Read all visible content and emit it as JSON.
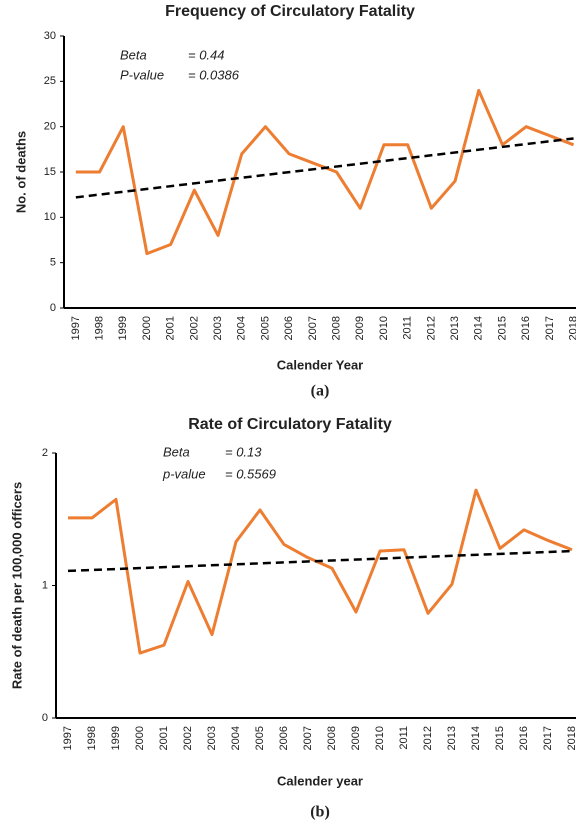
{
  "chart_data": [
    {
      "type": "line",
      "title": "Frequency of Circulatory Fatality",
      "x_label": "Calender Year",
      "y_label": "No. of deaths",
      "caption": "(a)",
      "categories": [
        "1997",
        "1998",
        "1999",
        "2000",
        "2001",
        "2002",
        "2003",
        "2004",
        "2005",
        "2006",
        "2007",
        "2008",
        "2009",
        "2010",
        "2011",
        "2012",
        "2013",
        "2014",
        "2015",
        "2016",
        "2017",
        "2018"
      ],
      "series": [
        {
          "color": "#ed7d31",
          "values": [
            15,
            15,
            20,
            6,
            7,
            13,
            8,
            17,
            20,
            17,
            16,
            15,
            11,
            18,
            18,
            11,
            14,
            24,
            18,
            20,
            19,
            18
          ]
        }
      ],
      "trendline": {
        "color": "#000000",
        "values": [
          12.2,
          18.7
        ]
      },
      "annotations": [
        {
          "label": "Beta",
          "text": "= 0.44"
        },
        {
          "label": "P-value",
          "text": "= 0.0386"
        }
      ],
      "ylim": [
        0,
        30
      ],
      "yticks": [
        0,
        5,
        10,
        15,
        20,
        25,
        30
      ],
      "grid": false
    },
    {
      "type": "line",
      "title": "Rate of Circulatory Fatality",
      "x_label": "Calender year",
      "y_label": "Rate of death per 100,000 officers",
      "caption": "(b)",
      "categories": [
        "1997",
        "1998",
        "1999",
        "2000",
        "2001",
        "2002",
        "2003",
        "2004",
        "2005",
        "2006",
        "2007",
        "2008",
        "2009",
        "2010",
        "2011",
        "2012",
        "2013",
        "2014",
        "2015",
        "2016",
        "2017",
        "2018"
      ],
      "series": [
        {
          "color": "#ed7d31",
          "values": [
            1.51,
            1.51,
            1.65,
            0.49,
            0.55,
            1.03,
            0.63,
            1.33,
            1.57,
            1.31,
            1.21,
            1.13,
            0.8,
            1.26,
            1.27,
            0.79,
            1.01,
            1.72,
            1.28,
            1.42,
            1.34,
            1.27
          ]
        }
      ],
      "trendline": {
        "color": "#000000",
        "values": [
          1.11,
          1.26
        ]
      },
      "annotations": [
        {
          "label": "Beta",
          "text": "= 0.13"
        },
        {
          "label": "p-value",
          "text": "= 0.5569"
        }
      ],
      "ylim": [
        0,
        2
      ],
      "yticks": [
        0,
        1,
        2
      ],
      "grid": false
    }
  ]
}
